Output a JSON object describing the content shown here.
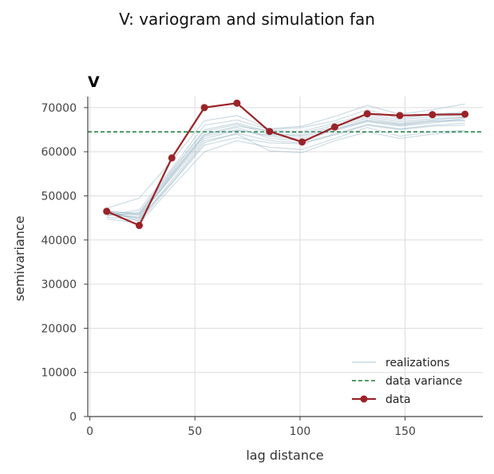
{
  "figure_title": "V: variogram and simulation fan",
  "chart_data": {
    "type": "line",
    "panel_label": "V",
    "xlabel": "lag distance",
    "ylabel": "semivariance",
    "xlim": [
      -1,
      187
    ],
    "ylim": [
      0,
      72500
    ],
    "xticks": [
      0,
      50,
      100,
      150
    ],
    "yticks": [
      0,
      10000,
      20000,
      30000,
      40000,
      50000,
      60000,
      70000
    ],
    "grid": true,
    "legend_position": "lower-right",
    "legend": [
      "realizations",
      "data variance",
      "data"
    ],
    "colors": {
      "realizations": "#8fb0bf",
      "data_variance": "#1a7a3a",
      "data": "#9b2328"
    },
    "x": [
      8,
      23.5,
      39,
      54.5,
      70,
      85.5,
      101,
      116.5,
      132,
      147.5,
      163,
      178.5
    ],
    "data_variance": 64500,
    "data_series": {
      "name": "data",
      "values": [
        46500,
        43300,
        58600,
        70000,
        71000,
        64600,
        62200,
        65600,
        68600,
        68200,
        68400,
        68500
      ]
    },
    "realizations": [
      [
        45800,
        45200,
        54500,
        63500,
        65000,
        63500,
        63000,
        65000,
        67000,
        66000,
        66800,
        67000
      ],
      [
        46200,
        44800,
        53000,
        62000,
        64200,
        62500,
        62000,
        64000,
        66200,
        65200,
        66000,
        66500
      ],
      [
        45500,
        46200,
        55800,
        65000,
        66500,
        64500,
        64200,
        66000,
        68000,
        66800,
        67500,
        67800
      ],
      [
        47200,
        49500,
        58000,
        67000,
        68200,
        65200,
        65800,
        68000,
        70500,
        68500,
        69500,
        70800
      ],
      [
        44800,
        43800,
        52000,
        60000,
        62500,
        61000,
        60500,
        63000,
        65500,
        63500,
        64500,
        64800
      ],
      [
        46000,
        45600,
        54200,
        63000,
        64800,
        63800,
        63500,
        65200,
        67200,
        66200,
        67000,
        67200
      ],
      [
        45600,
        46800,
        56200,
        66000,
        67200,
        65000,
        65500,
        67000,
        69500,
        67500,
        68500,
        69000
      ],
      [
        46800,
        44200,
        52800,
        61500,
        63200,
        62000,
        61800,
        63800,
        66000,
        65000,
        65800,
        66000
      ],
      [
        45200,
        44500,
        53500,
        62500,
        64000,
        60200,
        59800,
        62500,
        64500,
        63000,
        64000,
        64500
      ],
      [
        46400,
        45800,
        55000,
        64000,
        65800,
        64800,
        64600,
        66500,
        68500,
        67200,
        68000,
        68200
      ],
      [
        45900,
        45000,
        54800,
        63800,
        65500,
        63000,
        62600,
        64800,
        66800,
        65800,
        66500,
        67600
      ],
      [
        46600,
        46000,
        55400,
        64600,
        66200,
        64000,
        63800,
        65600,
        67600,
        66400,
        67200,
        67800
      ]
    ]
  }
}
